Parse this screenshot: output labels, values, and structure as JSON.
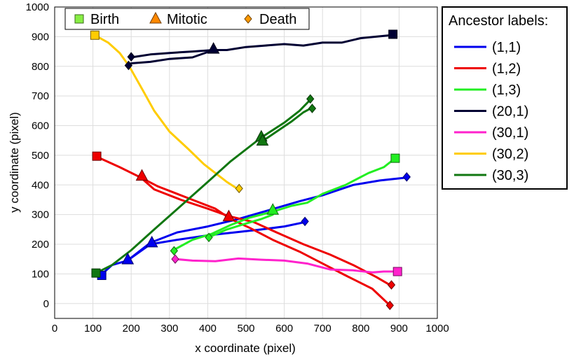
{
  "chart_data": {
    "type": "line",
    "xlabel": "x coordinate (pixel)",
    "ylabel": "y coordinate (pixel)",
    "xlim": [
      0,
      1000
    ],
    "ylim": [
      -50,
      1000
    ],
    "xticks": [
      0,
      100,
      200,
      300,
      400,
      500,
      600,
      700,
      800,
      900,
      1000
    ],
    "yticks": [
      0,
      100,
      200,
      300,
      400,
      500,
      600,
      700,
      800,
      900,
      1000
    ],
    "grid": true,
    "event_legend": {
      "placement": "top-left",
      "entries": [
        {
          "label": "Birth",
          "marker": "square"
        },
        {
          "label": "Mitotic",
          "marker": "triangle"
        },
        {
          "label": "Death",
          "marker": "diamond"
        }
      ]
    },
    "series_legend": {
      "title": "Ancestor labels:",
      "placement": "right"
    },
    "series": [
      {
        "name": "(1,1)",
        "color": "#0000ee",
        "tracks": [
          [
            [
              120,
              95
            ],
            [
              150,
              130
            ],
            [
              190,
              145
            ],
            [
              250,
              205
            ],
            [
              320,
              240
            ],
            [
              400,
              260
            ],
            [
              480,
              285
            ],
            [
              560,
              315
            ],
            [
              640,
              345
            ],
            [
              700,
              365
            ],
            [
              780,
              400
            ],
            [
              850,
              415
            ],
            [
              920,
              425
            ]
          ],
          [
            [
              190,
              145
            ],
            [
              250,
              200
            ],
            [
              320,
              215
            ],
            [
              400,
              230
            ],
            [
              470,
              240
            ],
            [
              540,
              250
            ],
            [
              600,
              260
            ],
            [
              655,
              275
            ]
          ]
        ],
        "markers": [
          {
            "type": "square",
            "x": 123,
            "y": 95
          },
          {
            "type": "triangle",
            "x": 191,
            "y": 148
          },
          {
            "type": "triangle",
            "x": 254,
            "y": 205
          },
          {
            "type": "diamond",
            "x": 920,
            "y": 427
          },
          {
            "type": "diamond",
            "x": 654,
            "y": 277
          }
        ]
      },
      {
        "name": "(1,2)",
        "color": "#ee0000",
        "tracks": [
          [
            [
              110,
              495
            ],
            [
              170,
              460
            ],
            [
              225,
              425
            ],
            [
              260,
              385
            ],
            [
              330,
              350
            ],
            [
              400,
              320
            ],
            [
              455,
              295
            ],
            [
              520,
              275
            ],
            [
              580,
              240
            ],
            [
              650,
              200
            ],
            [
              720,
              165
            ],
            [
              780,
              130
            ],
            [
              840,
              90
            ],
            [
              880,
              60
            ]
          ],
          [
            [
              225,
              425
            ],
            [
              270,
              395
            ],
            [
              350,
              355
            ],
            [
              420,
              320
            ],
            [
              460,
              285
            ],
            [
              510,
              255
            ],
            [
              570,
              215
            ],
            [
              640,
              175
            ],
            [
              700,
              135
            ],
            [
              760,
              95
            ],
            [
              830,
              50
            ],
            [
              875,
              -5
            ]
          ]
        ],
        "markers": [
          {
            "type": "square",
            "x": 110,
            "y": 497
          },
          {
            "type": "triangle",
            "x": 228,
            "y": 430
          },
          {
            "type": "triangle",
            "x": 455,
            "y": 293
          },
          {
            "type": "diamond",
            "x": 880,
            "y": 63
          },
          {
            "type": "diamond",
            "x": 876,
            "y": -6
          }
        ]
      },
      {
        "name": "(1,3)",
        "color": "#22ee22",
        "tracks": [
          [
            [
              310,
              180
            ],
            [
              360,
              215
            ],
            [
              410,
              235
            ],
            [
              460,
              265
            ],
            [
              510,
              290
            ],
            [
              570,
              310
            ],
            [
              620,
              330
            ],
            [
              660,
              340
            ],
            [
              700,
              370
            ],
            [
              760,
              400
            ],
            [
              820,
              440
            ],
            [
              860,
              460
            ],
            [
              890,
              490
            ]
          ],
          [
            [
              405,
              225
            ],
            [
              450,
              250
            ],
            [
              500,
              270
            ],
            [
              540,
              285
            ],
            [
              570,
              300
            ]
          ]
        ],
        "markers": [
          {
            "type": "square",
            "x": 890,
            "y": 490
          },
          {
            "type": "triangle",
            "x": 570,
            "y": 315
          },
          {
            "type": "diamond",
            "x": 312,
            "y": 178
          },
          {
            "type": "diamond",
            "x": 403,
            "y": 223
          }
        ]
      },
      {
        "name": "(20,1)",
        "color": "#000033",
        "tracks": [
          [
            [
              880,
              905
            ],
            [
              800,
              895
            ],
            [
              750,
              880
            ],
            [
              700,
              880
            ],
            [
              650,
              870
            ],
            [
              600,
              875
            ],
            [
              550,
              870
            ],
            [
              500,
              865
            ],
            [
              450,
              855
            ],
            [
              415,
              855
            ],
            [
              360,
              850
            ],
            [
              300,
              845
            ],
            [
              250,
              840
            ],
            [
              200,
              830
            ]
          ],
          [
            [
              415,
              855
            ],
            [
              360,
              830
            ],
            [
              300,
              825
            ],
            [
              250,
              815
            ],
            [
              200,
              810
            ],
            [
              193,
              800
            ]
          ]
        ],
        "markers": [
          {
            "type": "square",
            "x": 884,
            "y": 908
          },
          {
            "type": "triangle",
            "x": 415,
            "y": 858
          },
          {
            "type": "diamond",
            "x": 200,
            "y": 832
          },
          {
            "type": "diamond",
            "x": 193,
            "y": 803
          }
        ]
      },
      {
        "name": "(30,1)",
        "color": "#ff22cc",
        "tracks": [
          [
            [
              315,
              150
            ],
            [
              360,
              145
            ],
            [
              420,
              143
            ],
            [
              480,
              152
            ],
            [
              540,
              148
            ],
            [
              600,
              145
            ],
            [
              660,
              135
            ],
            [
              720,
              115
            ],
            [
              780,
              112
            ],
            [
              830,
              105
            ],
            [
              860,
              108
            ],
            [
              895,
              108
            ]
          ]
        ],
        "markers": [
          {
            "type": "square",
            "x": 896,
            "y": 108
          },
          {
            "type": "diamond",
            "x": 315,
            "y": 150
          }
        ]
      },
      {
        "name": "(30,2)",
        "color": "#ffcc00",
        "tracks": [
          [
            [
              105,
              905
            ],
            [
              140,
              880
            ],
            [
              170,
              845
            ],
            [
              195,
              800
            ],
            [
              230,
              720
            ],
            [
              260,
              650
            ],
            [
              300,
              580
            ],
            [
              350,
              520
            ],
            [
              390,
              470
            ],
            [
              420,
              440
            ],
            [
              450,
              410
            ],
            [
              480,
              385
            ]
          ]
        ],
        "markers": [
          {
            "type": "square",
            "x": 105,
            "y": 905
          },
          {
            "type": "diamond",
            "x": 482,
            "y": 388
          }
        ]
      },
      {
        "name": "(30,3)",
        "color": "#117711",
        "tracks": [
          [
            [
              108,
              103
            ],
            [
              150,
              130
            ],
            [
              200,
              180
            ],
            [
              260,
              250
            ],
            [
              330,
              330
            ],
            [
              400,
              410
            ],
            [
              460,
              480
            ],
            [
              540,
              560
            ],
            [
              600,
              610
            ],
            [
              640,
              650
            ],
            [
              670,
              690
            ]
          ],
          [
            [
              540,
              545
            ],
            [
              580,
              580
            ],
            [
              620,
              615
            ],
            [
              650,
              645
            ],
            [
              672,
              660
            ]
          ]
        ],
        "markers": [
          {
            "type": "square",
            "x": 108,
            "y": 103
          },
          {
            "type": "triangle",
            "x": 540,
            "y": 562
          },
          {
            "type": "triangle",
            "x": 543,
            "y": 548
          },
          {
            "type": "diamond",
            "x": 668,
            "y": 690
          },
          {
            "type": "diamond",
            "x": 673,
            "y": 658
          }
        ]
      }
    ]
  }
}
